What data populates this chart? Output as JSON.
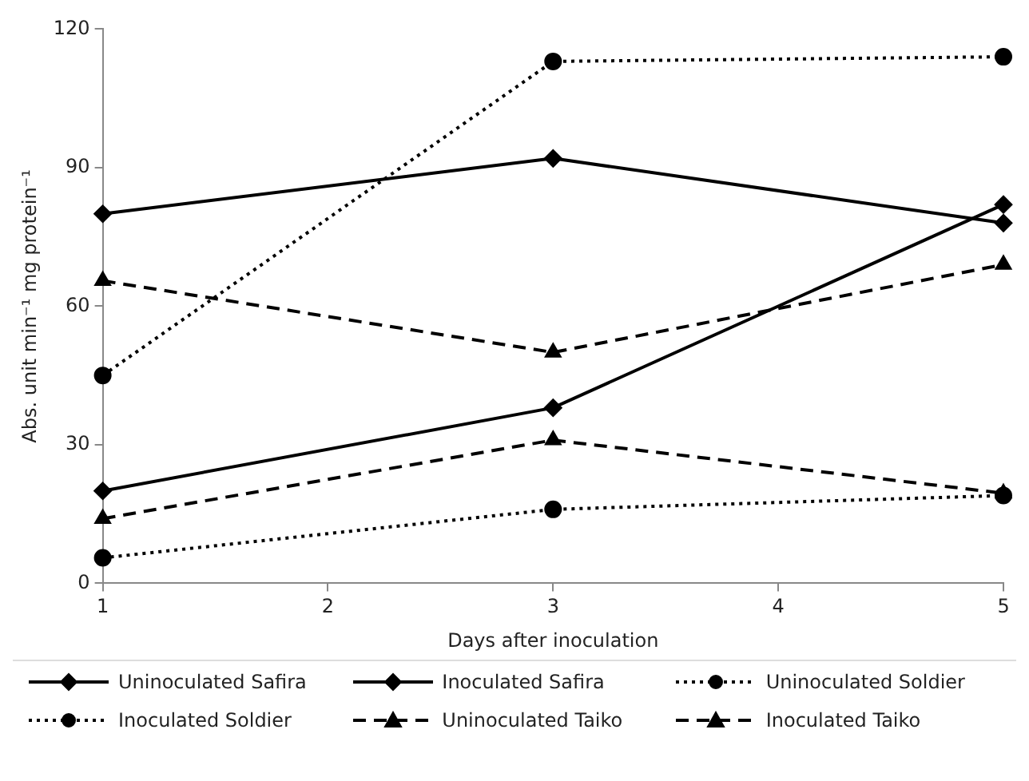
{
  "chart_data": {
    "type": "line",
    "xlabel": "Days after inoculation",
    "ylabel": "Abs. unit min⁻¹ mg protein⁻¹",
    "x": [
      1,
      3,
      5
    ],
    "xlim": [
      1,
      5
    ],
    "xticks": [
      1,
      2,
      3,
      4,
      5
    ],
    "ylim": [
      0,
      120
    ],
    "yticks": [
      0,
      30,
      60,
      90,
      120
    ],
    "grid": false,
    "legend": "bottom",
    "series": [
      {
        "name": "Uninoculated Safira",
        "color": "#000000",
        "marker": "diamond",
        "line_style": "solid",
        "values": [
          20,
          38,
          82
        ]
      },
      {
        "name": "Inoculated Safira",
        "color": "#000000",
        "marker": "diamond",
        "line_style": "solid",
        "values": [
          80,
          92,
          78
        ]
      },
      {
        "name": "Uninoculated Soldier",
        "color": "#000000",
        "marker": "circle",
        "line_style": "dotted",
        "values": [
          5.5,
          16,
          19
        ]
      },
      {
        "name": "Inoculated Soldier",
        "color": "#000000",
        "marker": "circle",
        "line_style": "dotted",
        "values": [
          45,
          113,
          114
        ]
      },
      {
        "name": "Uninoculated Taiko",
        "color": "#000000",
        "marker": "triangle",
        "line_style": "dashed",
        "values": [
          14,
          31,
          19.5
        ]
      },
      {
        "name": "Inoculated Taiko",
        "color": "#000000",
        "marker": "triangle",
        "line_style": "dashed",
        "values": [
          65.5,
          50,
          69
        ]
      }
    ]
  }
}
